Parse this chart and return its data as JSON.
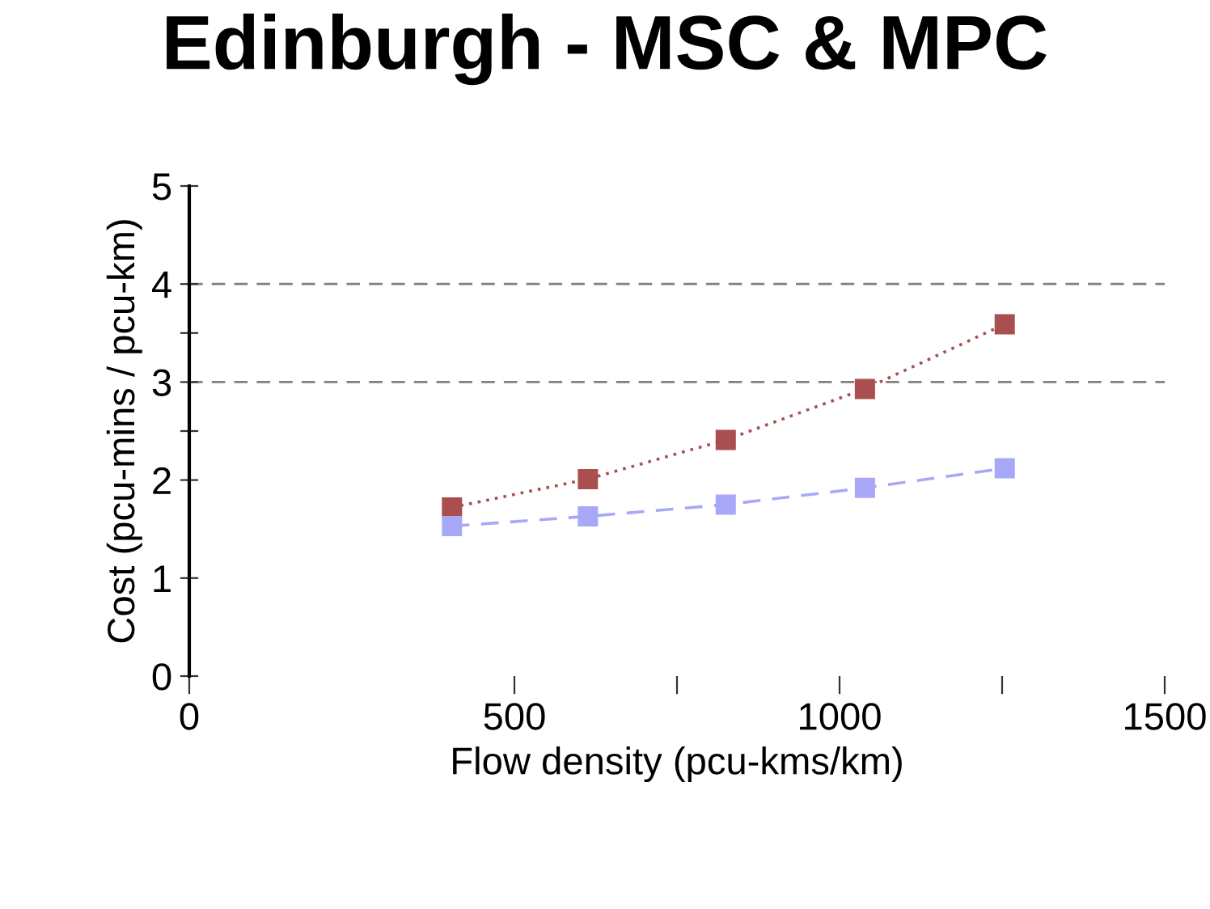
{
  "chart_data": {
    "type": "line",
    "title": "Edinburgh - MSC & MPC",
    "xlabel": "Flow density (pcu-kms/km)",
    "ylabel": "Cost (pcu-mins / pcu-km)",
    "x": [
      404,
      613,
      825,
      1039,
      1254
    ],
    "series": [
      {
        "color": "#a94f4f",
        "line_style": "dotted",
        "values": [
          1.72,
          2.01,
          2.41,
          2.93,
          3.59
        ]
      },
      {
        "color": "#a8a8f8",
        "line_style": "dashed",
        "values": [
          1.53,
          1.63,
          1.75,
          1.92,
          2.12
        ]
      }
    ],
    "marker": "square",
    "grid": false,
    "legend": false,
    "xlim": [
      0,
      1500
    ],
    "ylim": [
      0,
      5
    ],
    "xticks": [
      0,
      500,
      {
        "value": 750,
        "label": null
      },
      1000,
      {
        "value": 1250,
        "label": null
      },
      1500
    ],
    "yticks": [
      0,
      1,
      2,
      {
        "value": 2.5,
        "label": null
      },
      3,
      {
        "value": 3.5,
        "label": null
      },
      4,
      5
    ],
    "ref_lines": [
      {
        "axis": "y",
        "value": 3,
        "color": "#808080",
        "line_style": "dashed"
      },
      {
        "axis": "y",
        "value": 4,
        "color": "#808080",
        "line_style": "dashed"
      }
    ]
  }
}
